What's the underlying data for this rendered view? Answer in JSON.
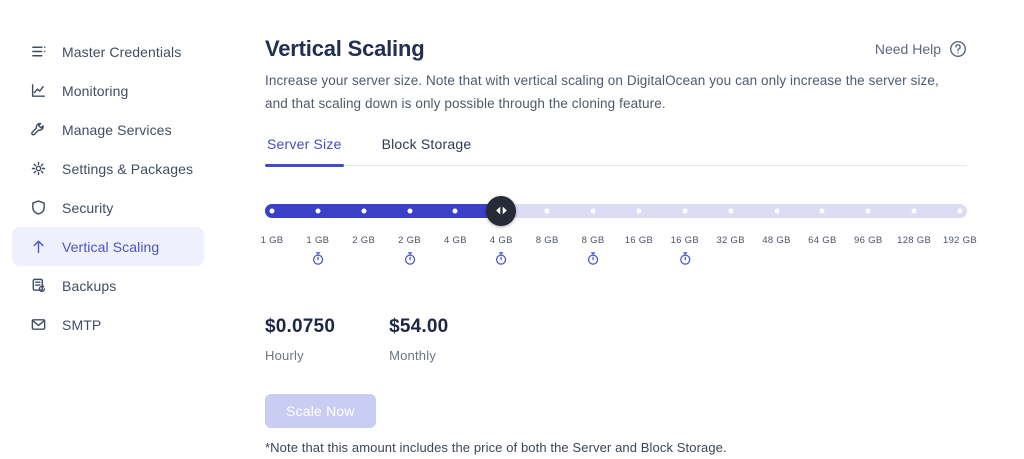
{
  "sidebar": {
    "items": [
      {
        "label": "Master Credentials",
        "icon": "menu-lines-icon",
        "active": false
      },
      {
        "label": "Monitoring",
        "icon": "chart-line-icon",
        "active": false
      },
      {
        "label": "Manage Services",
        "icon": "wrench-icon",
        "active": false
      },
      {
        "label": "Settings & Packages",
        "icon": "gear-icon",
        "active": false
      },
      {
        "label": "Security",
        "icon": "shield-icon",
        "active": false
      },
      {
        "label": "Vertical Scaling",
        "icon": "arrow-up-icon",
        "active": true
      },
      {
        "label": "Backups",
        "icon": "backup-icon",
        "active": false
      },
      {
        "label": "SMTP",
        "icon": "envelope-icon",
        "active": false
      }
    ]
  },
  "header": {
    "title": "Vertical Scaling",
    "help_label": "Need Help",
    "help_icon": "question-circle-icon"
  },
  "description": {
    "line1": "Increase your server size. Note that with vertical scaling on DigitalOcean you can only increase the server size,",
    "line2": "and that scaling down is only possible through the cloning feature."
  },
  "tabs": [
    {
      "label": "Server Size",
      "active": true
    },
    {
      "label": "Block Storage",
      "active": false
    }
  ],
  "slider": {
    "handle_index": 5,
    "selected_label": "4 GB",
    "positions": [
      {
        "label": "1 GB",
        "timer": false
      },
      {
        "label": "1 GB",
        "timer": true
      },
      {
        "label": "2 GB",
        "timer": false
      },
      {
        "label": "2 GB",
        "timer": true
      },
      {
        "label": "4 GB",
        "timer": false
      },
      {
        "label": "4 GB",
        "timer": true
      },
      {
        "label": "8 GB",
        "timer": false
      },
      {
        "label": "8 GB",
        "timer": true
      },
      {
        "label": "16 GB",
        "timer": false
      },
      {
        "label": "16 GB",
        "timer": true
      },
      {
        "label": "32 GB",
        "timer": false
      },
      {
        "label": "48 GB",
        "timer": false
      },
      {
        "label": "64 GB",
        "timer": false
      },
      {
        "label": "96 GB",
        "timer": false
      },
      {
        "label": "128 GB",
        "timer": false
      },
      {
        "label": "192 GB",
        "timer": false
      }
    ]
  },
  "pricing": [
    {
      "value": "$0.0750",
      "label": "Hourly"
    },
    {
      "value": "$54.00",
      "label": "Monthly"
    }
  ],
  "actions": {
    "scale_button": "Scale Now",
    "scale_enabled": false
  },
  "footnote": "*Note that this amount includes the price of both the Server and Block Storage.",
  "colors": {
    "accent": "#444bc9",
    "slider_fill": "#3c40c6",
    "slider_track": "#dcddf5",
    "handle": "#272b35",
    "title": "#232e52",
    "active_item_bg": "#eef0fb",
    "disabled_button_bg": "#c9cdf2"
  }
}
